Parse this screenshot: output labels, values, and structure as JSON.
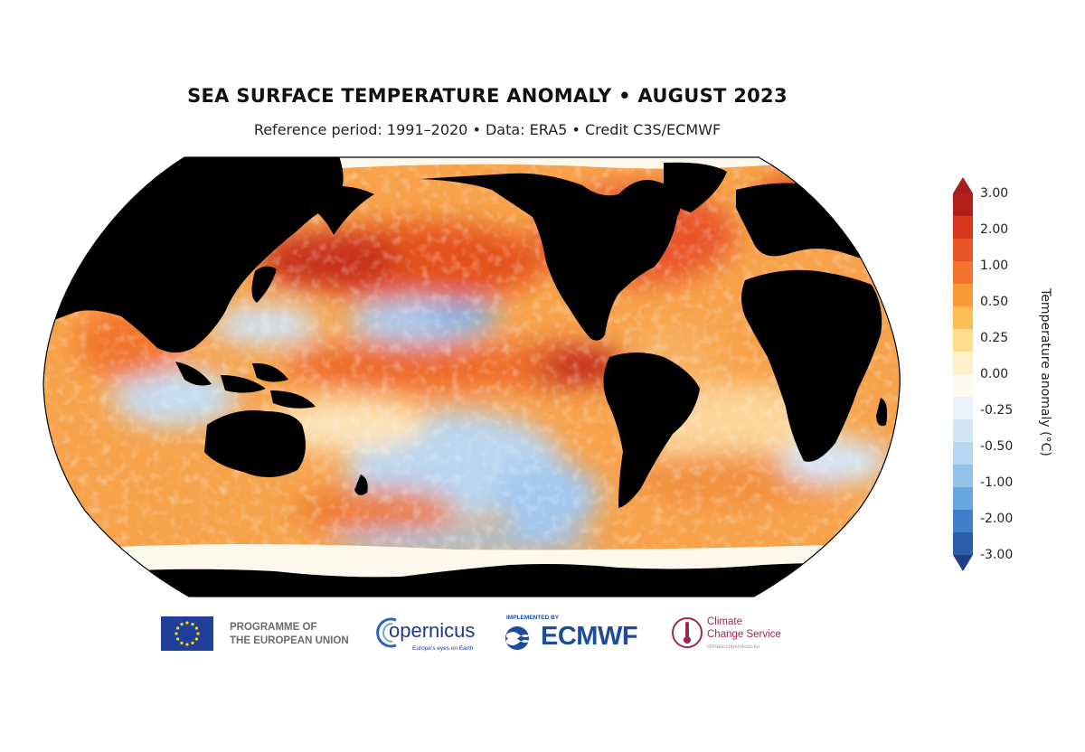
{
  "title": "SEA SURFACE TEMPERATURE ANOMALY • AUGUST 2023",
  "subtitle": "Reference period: 1991–2020 • Data: ERA5 • Credit C3S/ECMWF",
  "map": {
    "projection": "Robinson (Pacific-centred)",
    "land_color": "#000000",
    "sea_ice_color": "#fdf8ec"
  },
  "colorbar": {
    "label": "Temperature anomaly (°C)",
    "ticks": [
      "3.00",
      "2.00",
      "1.00",
      "0.50",
      "0.25",
      "0.00",
      "-0.25",
      "-0.50",
      "-1.00",
      "-2.00",
      "-3.00"
    ],
    "colors_top_to_bottom": [
      "#b31f1a",
      "#d9361f",
      "#e8572a",
      "#f2742c",
      "#f99a36",
      "#fbbe55",
      "#fddc8e",
      "#fef0c8",
      "#fffaf0",
      "#eaf3fb",
      "#d2e6f7",
      "#b6d6f1",
      "#93c2eb",
      "#6aa6df",
      "#3f7ecb",
      "#2a5ea9"
    ],
    "extend_max_color": "#a3201d",
    "extend_min_color": "#1d3f86"
  },
  "logos": {
    "eu": {
      "line1": "PROGRAMME OF",
      "line2": "THE EUROPEAN UNION"
    },
    "copernicus": {
      "word": "opernicus",
      "tagline": "Europe's eyes on Earth"
    },
    "ecmwf": {
      "implemented_by": "IMPLEMENTED BY",
      "word": "ECMWF"
    },
    "c3s": {
      "line1": "Climate",
      "line2": "Change Service",
      "url": "climate.copernicus.eu"
    }
  }
}
